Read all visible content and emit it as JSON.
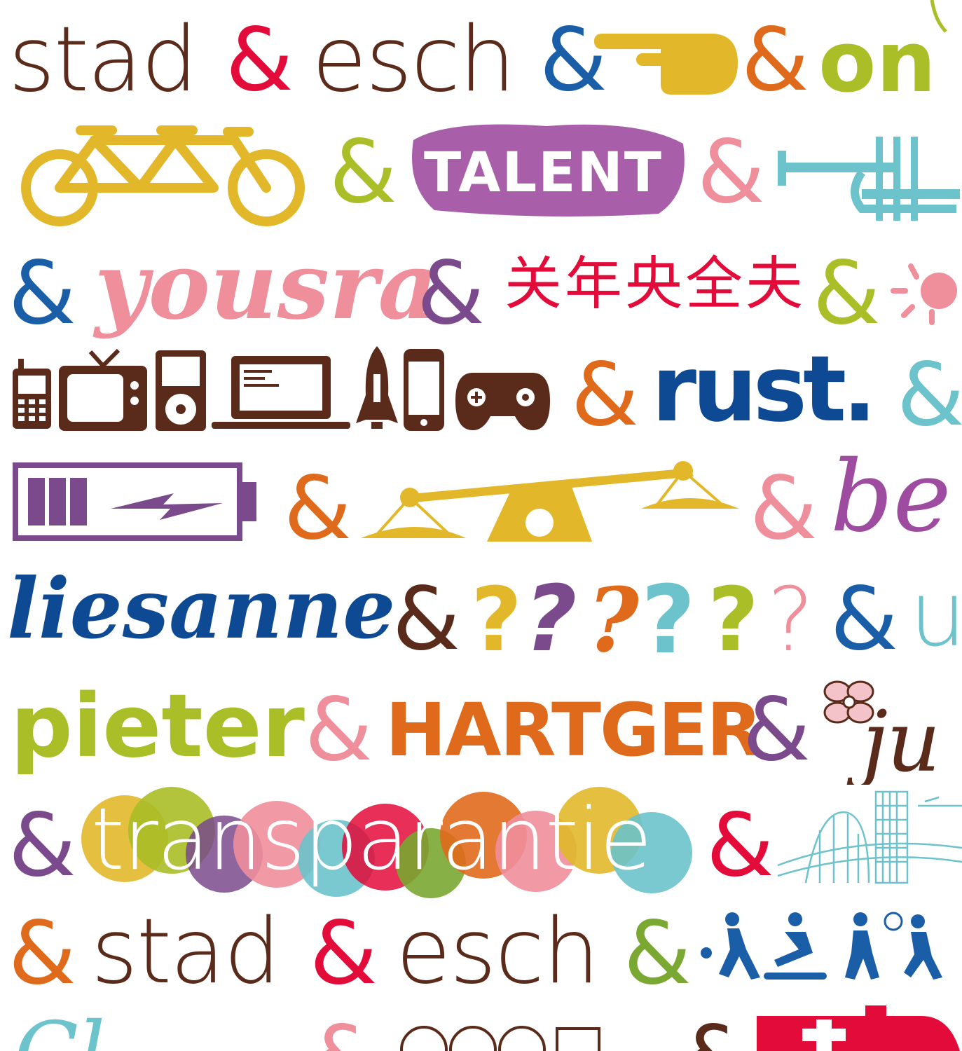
{
  "row1": {
    "w1": "stad",
    "amp1": "&",
    "w2": "esch",
    "amp2": "&",
    "amp3": "&",
    "w3": "on"
  },
  "row2": {
    "amp1": "&",
    "w1": "TALENT",
    "amp2": "&"
  },
  "row3": {
    "amp1": "&",
    "w1": "yousra",
    "amp2": "&",
    "w2": "关年央全夫",
    "amp3": "&"
  },
  "row4": {
    "amp1": "&",
    "w1": "rust.",
    "amp2": "&"
  },
  "row5": {
    "amp1": "&",
    "amp2": "&",
    "w1": "be"
  },
  "row6": {
    "w1": "liesanne",
    "amp1": "&",
    "q1": "?",
    "q2": "?",
    "q3": "?",
    "q4": "?",
    "q5": "?",
    "q6": "?",
    "amp2": "&",
    "w2": "u"
  },
  "row7": {
    "w1": "pieter",
    "amp1": "&",
    "w2": "HARTGER",
    "amp2": "&",
    "w3": "ju"
  },
  "row8": {
    "amp1": "&",
    "w1": "transparantie",
    "amp2": "&"
  },
  "row9": {
    "amp1": "&",
    "w1": "stad",
    "amp2": "&",
    "w2": "esch",
    "amp3": "&"
  },
  "row10": {
    "w1": "Cl",
    "amp1": "&",
    "amp2": "&"
  },
  "colors": {
    "brown": "#5a2a1a",
    "red": "#e30b3a",
    "blue": "#1a5ea8",
    "mustard": "#e2b82a",
    "orange": "#e06a1c",
    "lime": "#a9be27",
    "purple": "#7a4a8c",
    "pink": "#ef8f9c",
    "teal": "#6dc3cb",
    "magenta": "#9e4ca0",
    "navy": "#0e4a93",
    "bluelight": "#2e77bf"
  },
  "icons": [
    "pointing-hand-icon",
    "tandem-bicycle-icon",
    "trumpet-icon",
    "sun-icon",
    "phone-icon",
    "tv-icon",
    "ipod-icon",
    "laptop-icon",
    "rocket-icon",
    "smartphone-icon",
    "gamepad-icon",
    "battery-icon",
    "scale-icon",
    "flower-icon",
    "city-skyline-icon",
    "sports-people-icon",
    "ambulance-icon"
  ]
}
